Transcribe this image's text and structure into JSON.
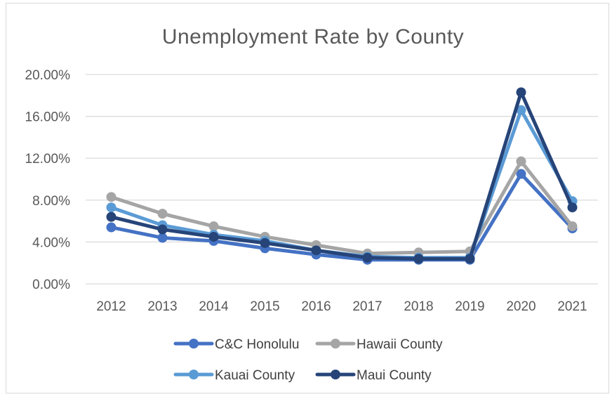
{
  "chart_data": {
    "type": "line",
    "title": "Unemployment Rate by County",
    "categories": [
      "2012",
      "2013",
      "2014",
      "2015",
      "2016",
      "2017",
      "2018",
      "2019",
      "2020",
      "2021"
    ],
    "ylim": [
      0,
      20
    ],
    "yticks": [
      0,
      4,
      8,
      12,
      16,
      20
    ],
    "ytick_labels": [
      "0.00%",
      "4.00%",
      "8.00%",
      "12.00%",
      "16.00%",
      "20.00%"
    ],
    "grid": true,
    "legend_position": "bottom",
    "series": [
      {
        "name": "C&C Honolulu",
        "color": "#4472C4",
        "values": [
          5.4,
          4.4,
          4.1,
          3.4,
          2.8,
          2.3,
          2.3,
          2.3,
          10.5,
          5.3
        ]
      },
      {
        "name": "Hawaii County",
        "color": "#A5A5A5",
        "values": [
          8.3,
          6.7,
          5.5,
          4.5,
          3.7,
          2.9,
          3.0,
          3.1,
          11.7,
          5.5
        ]
      },
      {
        "name": "Kauai County",
        "color": "#5B9BD5",
        "values": [
          7.3,
          5.6,
          4.7,
          4.1,
          3.2,
          2.6,
          2.5,
          2.5,
          16.6,
          7.9
        ]
      },
      {
        "name": "Maui County",
        "color": "#264478",
        "values": [
          6.4,
          5.2,
          4.5,
          3.9,
          3.2,
          2.5,
          2.4,
          2.4,
          18.3,
          7.3
        ]
      }
    ]
  }
}
